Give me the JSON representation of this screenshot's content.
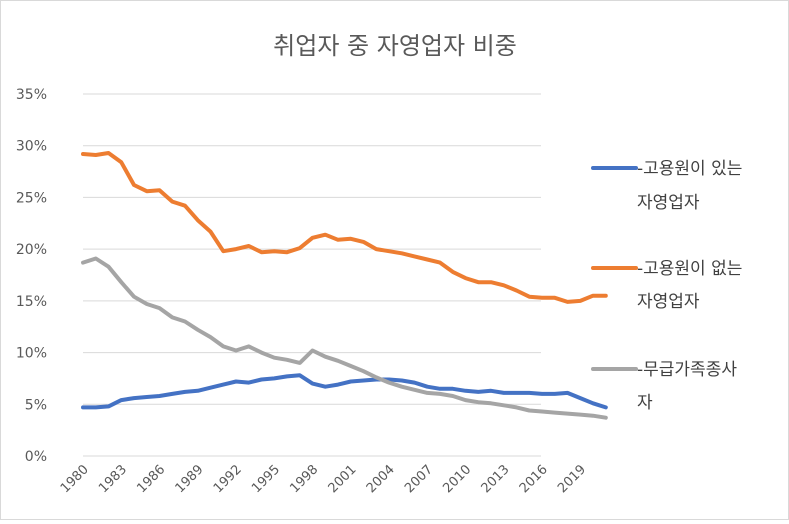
{
  "chart_data": {
    "type": "line",
    "title": "취업자 중 자영업자 비중",
    "xlabel": "",
    "ylabel": "",
    "ylim": [
      0,
      35
    ],
    "yticks": [
      "0%",
      "5%",
      "10%",
      "15%",
      "20%",
      "25%",
      "30%",
      "35%"
    ],
    "xtick_labels": [
      "1980",
      "1983",
      "1986",
      "1989",
      "1992",
      "1995",
      "1998",
      "2001",
      "2004",
      "2007",
      "2010",
      "2013",
      "2016",
      "2019"
    ],
    "x": [
      1980,
      1981,
      1982,
      1983,
      1984,
      1985,
      1986,
      1987,
      1988,
      1989,
      1990,
      1991,
      1992,
      1993,
      1994,
      1995,
      1996,
      1997,
      1998,
      1999,
      2000,
      2001,
      2002,
      2003,
      2004,
      2005,
      2006,
      2007,
      2008,
      2009,
      2010,
      2011,
      2012,
      2013,
      2014,
      2015,
      2016,
      2017,
      2018,
      2019,
      2020,
      2021
    ],
    "grid": true,
    "legend_position": "right",
    "series": [
      {
        "name_line1": "-고용원이 있는",
        "name_line2": "자영업자",
        "color": "#4472c4",
        "values": [
          4.7,
          4.7,
          4.8,
          5.4,
          5.6,
          5.7,
          5.8,
          6.0,
          6.2,
          6.3,
          6.6,
          6.9,
          7.2,
          7.1,
          7.4,
          7.5,
          7.7,
          7.8,
          7.0,
          6.7,
          6.9,
          7.2,
          7.3,
          7.4,
          7.4,
          7.3,
          7.1,
          6.7,
          6.5,
          6.5,
          6.3,
          6.2,
          6.3,
          6.1,
          6.1,
          6.1,
          6.0,
          6.0,
          6.1,
          5.6,
          5.1,
          4.7
        ]
      },
      {
        "name_line1": "-고용원이 없는",
        "name_line2": "자영업자",
        "color": "#ed7d31",
        "values": [
          29.2,
          29.1,
          29.3,
          28.4,
          26.2,
          25.6,
          25.7,
          24.6,
          24.2,
          22.8,
          21.7,
          19.8,
          20.0,
          20.3,
          19.7,
          19.8,
          19.7,
          20.1,
          21.1,
          21.4,
          20.9,
          21.0,
          20.7,
          20.0,
          19.8,
          19.6,
          19.3,
          19.0,
          18.7,
          17.8,
          17.2,
          16.8,
          16.8,
          16.5,
          16.0,
          15.4,
          15.3,
          15.3,
          14.9,
          15.0,
          15.5,
          15.5
        ]
      },
      {
        "name_line1": "-무급가족종사",
        "name_line2": "자",
        "color": "#a5a5a5",
        "values": [
          18.7,
          19.1,
          18.3,
          16.8,
          15.4,
          14.7,
          14.3,
          13.4,
          13.0,
          12.2,
          11.5,
          10.6,
          10.2,
          10.6,
          10.0,
          9.5,
          9.3,
          9.0,
          10.2,
          9.6,
          9.2,
          8.7,
          8.2,
          7.6,
          7.1,
          6.7,
          6.4,
          6.1,
          6.0,
          5.8,
          5.4,
          5.2,
          5.1,
          4.9,
          4.7,
          4.4,
          4.3,
          4.2,
          4.1,
          4.0,
          3.9,
          3.7
        ]
      }
    ]
  }
}
